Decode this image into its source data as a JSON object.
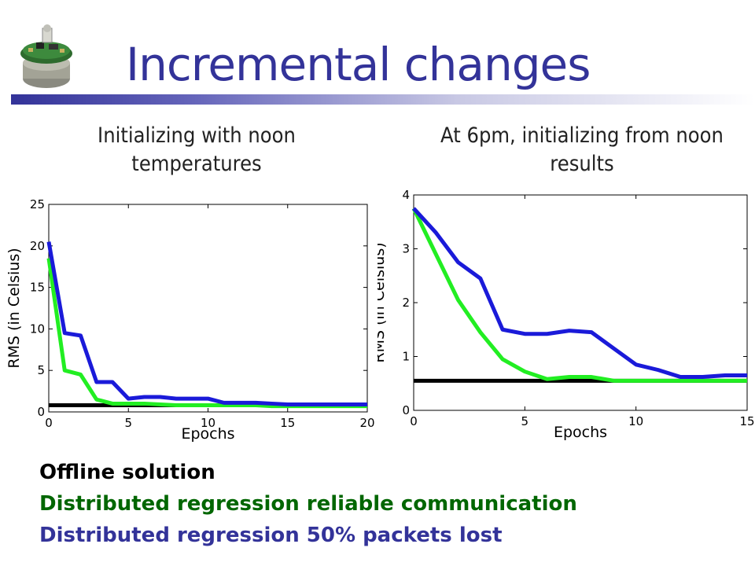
{
  "slide": {
    "title": "Incremental changes",
    "subtitle_left": "Initializing with noon temperatures",
    "subtitle_right": "At 6pm, initializing from noon results"
  },
  "legend": [
    {
      "label": "Offline solution",
      "color": "#000000"
    },
    {
      "label": "Distributed regression reliable communication",
      "color": "#006600"
    },
    {
      "label": "Distributed regression 50% packets lost",
      "color": "#333399"
    }
  ],
  "colors": {
    "offline": "#000000",
    "reliable": "#22ee22",
    "lossy": "#1a1ad9"
  },
  "chart_data": [
    {
      "type": "line",
      "xlabel": "Epochs",
      "ylabel": "RMS (in Celsius)",
      "xlim": [
        0,
        20
      ],
      "ylim": [
        0,
        25
      ],
      "xticks": [
        0,
        5,
        10,
        15,
        20
      ],
      "yticks": [
        0,
        5,
        10,
        15,
        20,
        25
      ],
      "grid": false,
      "series": [
        {
          "key": "offline",
          "x": [
            0,
            20
          ],
          "values": [
            0.8,
            0.8
          ]
        },
        {
          "key": "reliable",
          "x": [
            0,
            1,
            2,
            3,
            4,
            5,
            6,
            7,
            8,
            9,
            10,
            11,
            12,
            13,
            14,
            15,
            16,
            17,
            18,
            19,
            20
          ],
          "values": [
            18.5,
            5,
            4.5,
            1.5,
            1,
            1,
            1,
            0.9,
            0.8,
            0.8,
            0.8,
            0.8,
            0.8,
            0.8,
            0.7,
            0.7,
            0.7,
            0.7,
            0.7,
            0.7,
            0.7
          ]
        },
        {
          "key": "lossy",
          "x": [
            0,
            1,
            2,
            3,
            4,
            5,
            6,
            7,
            8,
            9,
            10,
            11,
            12,
            13,
            14,
            15,
            16,
            17,
            18,
            19,
            20
          ],
          "values": [
            20.5,
            9.5,
            9.2,
            3.6,
            3.6,
            1.6,
            1.8,
            1.8,
            1.6,
            1.6,
            1.6,
            1.1,
            1.1,
            1.1,
            1,
            0.9,
            0.9,
            0.9,
            0.9,
            0.9,
            0.9
          ]
        }
      ]
    },
    {
      "type": "line",
      "xlabel": "Epochs",
      "ylabel": "RMS (in Celsius)",
      "xlim": [
        0,
        15
      ],
      "ylim": [
        0,
        4
      ],
      "xticks": [
        0,
        5,
        10,
        15
      ],
      "yticks": [
        0,
        1,
        2,
        3,
        4
      ],
      "grid": false,
      "series": [
        {
          "key": "offline",
          "x": [
            0,
            15
          ],
          "values": [
            0.55,
            0.55
          ]
        },
        {
          "key": "reliable",
          "x": [
            0,
            1,
            2,
            3,
            4,
            5,
            6,
            7,
            8,
            9,
            10,
            11,
            12,
            13,
            14,
            15
          ],
          "values": [
            3.75,
            2.9,
            2.05,
            1.45,
            0.95,
            0.72,
            0.58,
            0.62,
            0.62,
            0.55,
            0.55,
            0.55,
            0.55,
            0.55,
            0.55,
            0.55
          ]
        },
        {
          "key": "lossy",
          "x": [
            0,
            1,
            2,
            3,
            4,
            5,
            6,
            7,
            8,
            9,
            10,
            11,
            12,
            13,
            14,
            15
          ],
          "values": [
            3.75,
            3.3,
            2.75,
            2.45,
            1.5,
            1.42,
            1.42,
            1.48,
            1.45,
            1.15,
            0.85,
            0.75,
            0.62,
            0.62,
            0.65,
            0.65
          ]
        }
      ]
    }
  ]
}
